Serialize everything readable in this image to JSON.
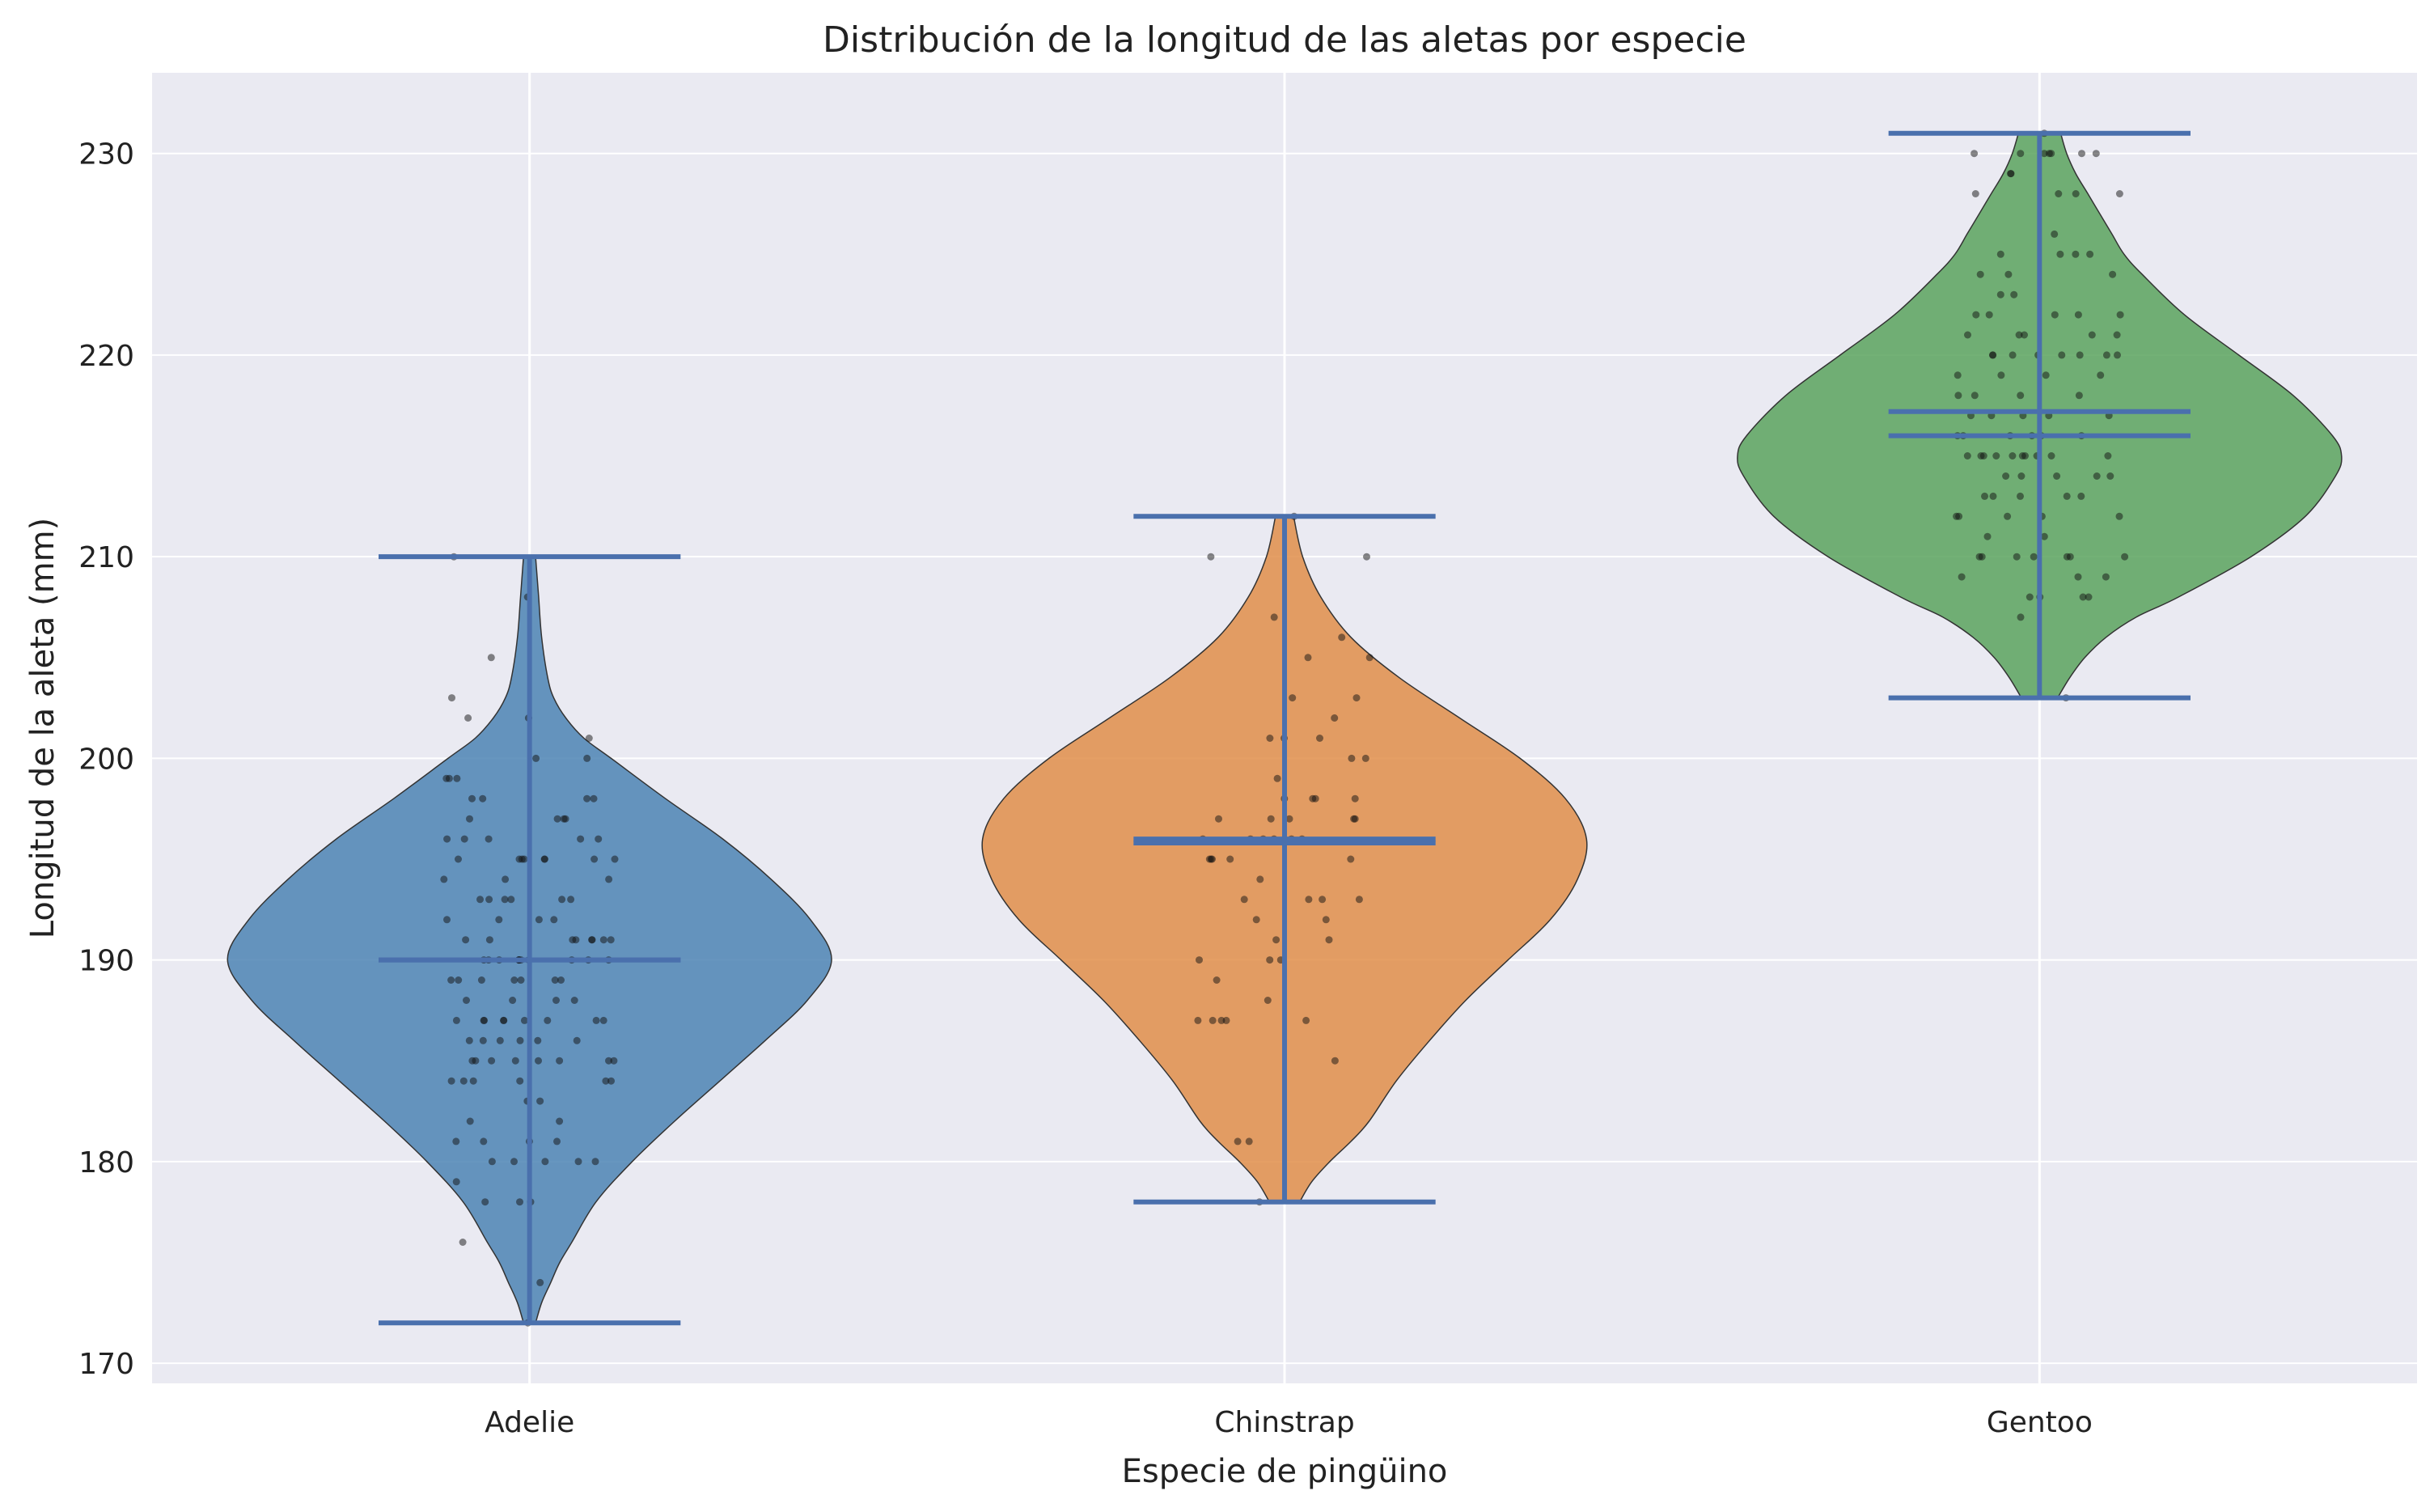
{
  "chart_data": {
    "type": "violin",
    "title": "Distribución de la longitud de las aletas por especie",
    "xlabel": "Especie de pingüino",
    "ylabel": "Longitud de la aleta (mm)",
    "ylim": [
      169,
      234
    ],
    "yticks": [
      170,
      180,
      190,
      200,
      210,
      220,
      230
    ],
    "grid": true,
    "legend": "none",
    "categories": [
      "Adelie",
      "Chinstrap",
      "Gentoo"
    ],
    "series": [
      {
        "category": "Adelie",
        "color": "#4c84b4",
        "min": 172,
        "max": 210,
        "mean": 190.0,
        "median": 190,
        "density": [
          [
            172,
            0.02
          ],
          [
            173,
            0.04
          ],
          [
            174,
            0.07
          ],
          [
            175,
            0.1
          ],
          [
            176,
            0.14
          ],
          [
            178,
            0.22
          ],
          [
            180,
            0.34
          ],
          [
            182,
            0.48
          ],
          [
            184,
            0.63
          ],
          [
            186,
            0.78
          ],
          [
            188,
            0.92
          ],
          [
            190,
            1.0
          ],
          [
            192,
            0.93
          ],
          [
            194,
            0.8
          ],
          [
            196,
            0.64
          ],
          [
            198,
            0.45
          ],
          [
            200,
            0.27
          ],
          [
            201,
            0.18
          ],
          [
            202,
            0.12
          ],
          [
            203,
            0.08
          ],
          [
            204,
            0.06
          ],
          [
            206,
            0.04
          ],
          [
            208,
            0.03
          ],
          [
            210,
            0.02
          ]
        ],
        "points": [
          172,
          174,
          176,
          178,
          178,
          178,
          179,
          180,
          180,
          180,
          180,
          180,
          181,
          181,
          181,
          181,
          182,
          182,
          183,
          183,
          184,
          184,
          184,
          184,
          184,
          184,
          185,
          185,
          185,
          185,
          185,
          185,
          185,
          185,
          186,
          186,
          186,
          186,
          186,
          186,
          187,
          187,
          187,
          187,
          187,
          187,
          187,
          187,
          187,
          188,
          188,
          188,
          188,
          189,
          189,
          189,
          189,
          189,
          189,
          189,
          190,
          190,
          190,
          190,
          190,
          190,
          190,
          190,
          190,
          190,
          190,
          191,
          191,
          191,
          191,
          191,
          191,
          191,
          191,
          192,
          192,
          192,
          192,
          193,
          193,
          193,
          193,
          193,
          193,
          194,
          194,
          194,
          195,
          195,
          195,
          195,
          195,
          195,
          195,
          195,
          196,
          196,
          196,
          196,
          196,
          197,
          197,
          197,
          197,
          198,
          198,
          198,
          198,
          199,
          199,
          199,
          200,
          200,
          201,
          202,
          202,
          203,
          205,
          208,
          210
        ]
      },
      {
        "category": "Chinstrap",
        "color": "#e08e4a",
        "min": 178,
        "max": 212,
        "mean": 195.8,
        "median": 196,
        "density": [
          [
            178,
            0.05
          ],
          [
            179,
            0.09
          ],
          [
            180,
            0.15
          ],
          [
            181,
            0.22
          ],
          [
            182,
            0.28
          ],
          [
            184,
            0.37
          ],
          [
            186,
            0.48
          ],
          [
            188,
            0.6
          ],
          [
            190,
            0.74
          ],
          [
            192,
            0.88
          ],
          [
            194,
            0.97
          ],
          [
            196,
            1.0
          ],
          [
            198,
            0.93
          ],
          [
            200,
            0.78
          ],
          [
            202,
            0.58
          ],
          [
            204,
            0.38
          ],
          [
            206,
            0.22
          ],
          [
            208,
            0.12
          ],
          [
            210,
            0.06
          ],
          [
            212,
            0.03
          ]
        ],
        "points": [
          178,
          181,
          181,
          185,
          187,
          187,
          187,
          187,
          187,
          188,
          189,
          190,
          190,
          190,
          191,
          191,
          192,
          192,
          193,
          193,
          193,
          193,
          194,
          195,
          195,
          195,
          195,
          195,
          196,
          196,
          196,
          196,
          196,
          196,
          197,
          197,
          197,
          197,
          197,
          198,
          198,
          198,
          198,
          199,
          200,
          200,
          201,
          201,
          201,
          202,
          203,
          203,
          205,
          205,
          206,
          207,
          210,
          210,
          212
        ]
      },
      {
        "category": "Gentoo",
        "color": "#5aa35e",
        "min": 203,
        "max": 231,
        "mean": 217.2,
        "median": 216,
        "density": [
          [
            203,
            0.06
          ],
          [
            204,
            0.1
          ],
          [
            205,
            0.15
          ],
          [
            206,
            0.22
          ],
          [
            207,
            0.32
          ],
          [
            208,
            0.46
          ],
          [
            210,
            0.7
          ],
          [
            212,
            0.88
          ],
          [
            214,
            0.98
          ],
          [
            215,
            1.0
          ],
          [
            216,
            0.97
          ],
          [
            218,
            0.84
          ],
          [
            220,
            0.66
          ],
          [
            222,
            0.48
          ],
          [
            224,
            0.34
          ],
          [
            225,
            0.28
          ],
          [
            226,
            0.24
          ],
          [
            227,
            0.2
          ],
          [
            228,
            0.16
          ],
          [
            229,
            0.12
          ],
          [
            230,
            0.09
          ],
          [
            231,
            0.07
          ]
        ],
        "points": [
          203,
          207,
          208,
          208,
          208,
          208,
          209,
          209,
          209,
          210,
          210,
          210,
          210,
          210,
          210,
          210,
          211,
          211,
          212,
          212,
          212,
          212,
          212,
          213,
          213,
          213,
          213,
          213,
          214,
          214,
          214,
          214,
          214,
          215,
          215,
          215,
          215,
          215,
          215,
          215,
          215,
          215,
          215,
          216,
          216,
          216,
          216,
          216,
          216,
          217,
          217,
          217,
          217,
          217,
          218,
          218,
          218,
          218,
          219,
          219,
          219,
          219,
          220,
          220,
          220,
          220,
          220,
          220,
          220,
          220,
          221,
          221,
          221,
          221,
          221,
          222,
          222,
          222,
          222,
          222,
          223,
          223,
          224,
          224,
          224,
          225,
          225,
          225,
          225,
          226,
          228,
          228,
          228,
          228,
          229,
          229,
          230,
          230,
          230,
          230,
          230,
          230,
          230,
          231
        ]
      }
    ]
  }
}
